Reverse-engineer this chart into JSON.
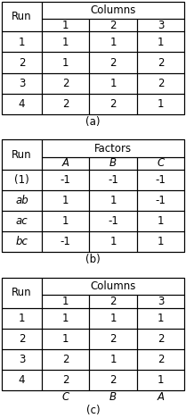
{
  "tables": [
    {
      "title": "Columns",
      "col_headers": [
        "1",
        "2",
        "3"
      ],
      "col_italic": false,
      "row_header": "Run",
      "rows": [
        [
          "1",
          "1",
          "1",
          "1"
        ],
        [
          "2",
          "1",
          "2",
          "2"
        ],
        [
          "3",
          "2",
          "1",
          "2"
        ],
        [
          "4",
          "2",
          "2",
          "1"
        ]
      ],
      "row_italic": [
        false,
        false,
        false,
        false
      ],
      "bottom_labels": null,
      "caption": "(a)"
    },
    {
      "title": "Factors",
      "col_headers": [
        "A",
        "B",
        "C"
      ],
      "col_italic": true,
      "row_header": "Run",
      "rows": [
        [
          "(1)",
          "-1",
          "-1",
          "-1"
        ],
        [
          "ab",
          "1",
          "1",
          "-1"
        ],
        [
          "ac",
          "1",
          "-1",
          "1"
        ],
        [
          "bc",
          "-1",
          "1",
          "1"
        ]
      ],
      "row_italic": [
        false,
        true,
        true,
        true
      ],
      "bottom_labels": null,
      "caption": "(b)"
    },
    {
      "title": "Columns",
      "col_headers": [
        "1",
        "2",
        "3"
      ],
      "col_italic": false,
      "row_header": "Run",
      "rows": [
        [
          "1",
          "1",
          "1",
          "1"
        ],
        [
          "2",
          "1",
          "2",
          "2"
        ],
        [
          "3",
          "2",
          "1",
          "2"
        ],
        [
          "4",
          "2",
          "2",
          "1"
        ]
      ],
      "row_italic": [
        false,
        false,
        false,
        false
      ],
      "bottom_labels": [
        "C",
        "B",
        "A"
      ],
      "caption": "(c)"
    }
  ],
  "fontsize": 8.5,
  "lw": 0.8
}
